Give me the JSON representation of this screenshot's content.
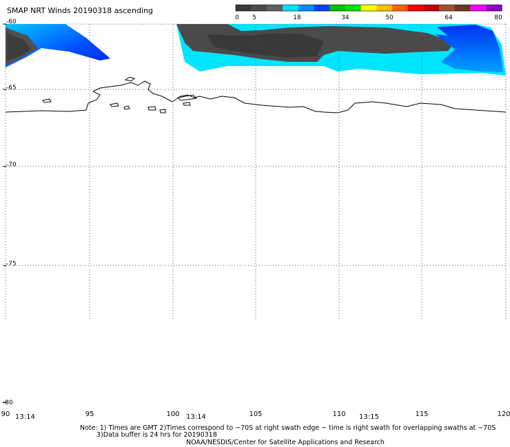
{
  "title": "SMAP NRT Winds 20190318 ascending",
  "colorbar": {
    "labels": [
      "0",
      "5",
      "18",
      "34",
      "50",
      "64",
      "80"
    ],
    "colors": [
      "#3a3a3a",
      "#4c4c4c",
      "#606060",
      "#00e0ff",
      "#0090ff",
      "#0040ff",
      "#00c000",
      "#00e000",
      "#ffff00",
      "#ffc000",
      "#ff6000",
      "#ff0000",
      "#c00000",
      "#a05030",
      "#6a3820",
      "#ff00ff",
      "#9000c0"
    ]
  },
  "axes": {
    "lat_labels": [
      "-60",
      "-65",
      "-70",
      "-75",
      "-80"
    ],
    "lon_labels": [
      "90",
      "95",
      "100",
      "105",
      "110",
      "115",
      "120"
    ],
    "times": [
      "13:14",
      "13:14",
      "13:15"
    ]
  },
  "notes": {
    "line1": "Note: 1) Times are GMT 2)Times correspond to ~70S at right swath edge ~ time is right swath for overlapping swaths at ~70S",
    "line2": "3)Data buffer is 24 hrs for 20190318",
    "line3": "NOAA/NESDIS/Center for Satellite Applications and Research"
  }
}
